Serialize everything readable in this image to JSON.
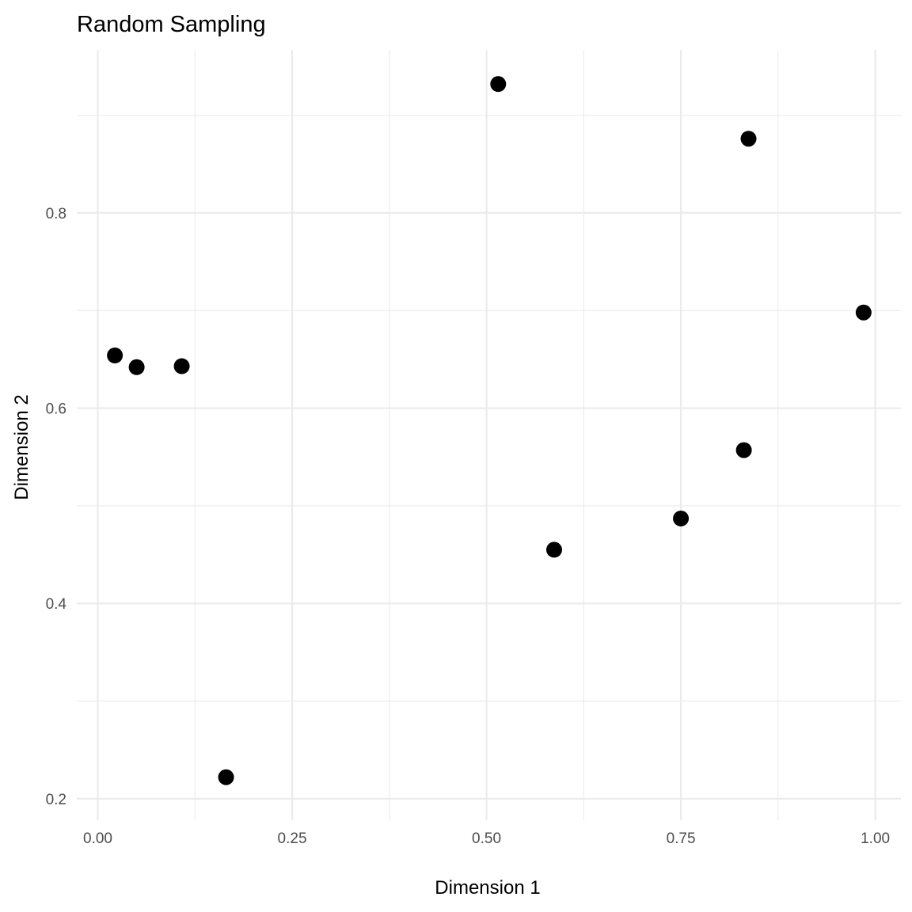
{
  "chart_data": {
    "type": "scatter",
    "title": "Random Sampling",
    "xlabel": "Dimension 1",
    "ylabel": "Dimension 2",
    "xlim": [
      -0.027,
      1.033
    ],
    "ylim": [
      0.178,
      0.967
    ],
    "x_ticks": [
      0.0,
      0.25,
      0.5,
      0.75,
      1.0
    ],
    "x_tick_labels": [
      "0.00",
      "0.25",
      "0.50",
      "0.75",
      "1.00"
    ],
    "x_minor_ticks": [
      0.125,
      0.375,
      0.625,
      0.875
    ],
    "y_ticks": [
      0.2,
      0.4,
      0.6,
      0.8
    ],
    "y_tick_labels": [
      "0.2",
      "0.4",
      "0.6",
      "0.8"
    ],
    "y_minor_ticks": [
      0.3,
      0.5,
      0.7,
      0.9
    ],
    "grid": true,
    "legend": "none",
    "point_color": "#000000",
    "points": [
      {
        "x": 0.022,
        "y": 0.654
      },
      {
        "x": 0.05,
        "y": 0.642
      },
      {
        "x": 0.108,
        "y": 0.643
      },
      {
        "x": 0.165,
        "y": 0.222
      },
      {
        "x": 0.515,
        "y": 0.932
      },
      {
        "x": 0.587,
        "y": 0.455
      },
      {
        "x": 0.75,
        "y": 0.487
      },
      {
        "x": 0.831,
        "y": 0.557
      },
      {
        "x": 0.837,
        "y": 0.876
      },
      {
        "x": 0.985,
        "y": 0.698
      }
    ]
  }
}
